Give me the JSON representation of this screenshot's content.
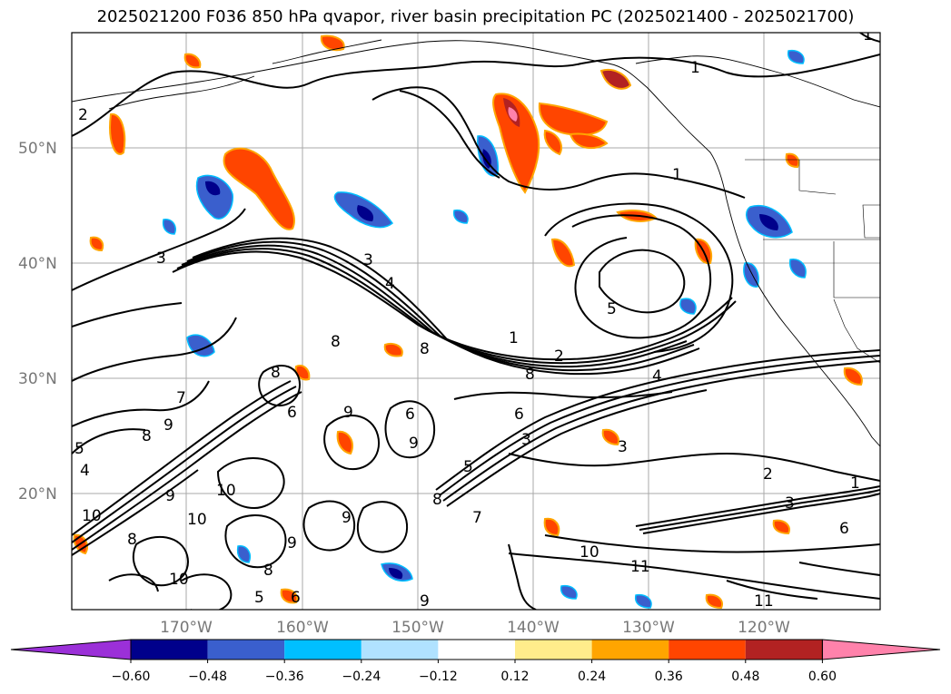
{
  "title": "2025021200 F036 850 hPa qvapor, river basin precipitation PC (2025021400 - 2025021700)",
  "map": {
    "lat_labels": [
      "50°N",
      "40°N",
      "30°N",
      "20°N"
    ],
    "lon_labels": [
      "170°W",
      "160°W",
      "150°W",
      "140°W",
      "130°W",
      "120°W"
    ],
    "contour_labels": [
      "1",
      "2",
      "3",
      "4",
      "5",
      "6",
      "7",
      "8",
      "9",
      "10",
      "11"
    ]
  },
  "colorbar": {
    "ticks": [
      "−0.60",
      "−0.48",
      "−0.36",
      "−0.24",
      "−0.12",
      "0.12",
      "0.24",
      "0.36",
      "0.48",
      "0.60"
    ],
    "colors": [
      "#9b30d8",
      "#00008b",
      "#3a5fcd",
      "#00bfff",
      "#b0e2ff",
      "#ffffff",
      "#ffec8b",
      "#ffa500",
      "#ff4500",
      "#b22222",
      "#ff82ab"
    ]
  },
  "colors": {
    "negative_strong": "#00008b",
    "negative_mid": "#3a5fcd",
    "negative_light": "#00bfff",
    "positive_light": "#ffa500",
    "positive_mid": "#ff4500",
    "positive_strong": "#b22222",
    "positive_extreme": "#ff82ab"
  }
}
